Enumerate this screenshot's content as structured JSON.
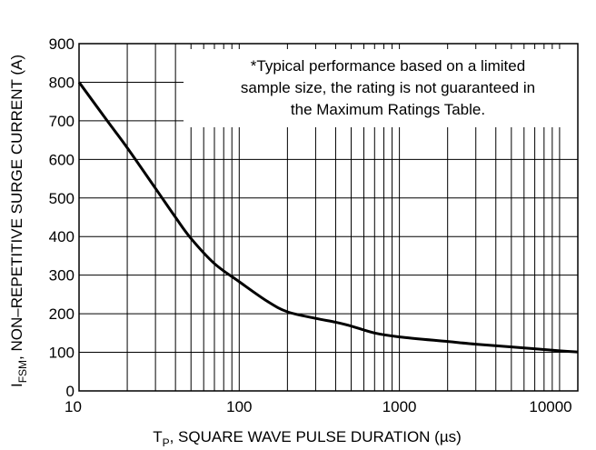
{
  "chart_data": {
    "type": "line",
    "x_scale": "log",
    "xlim": [
      10,
      13000
    ],
    "ylim": [
      0,
      900
    ],
    "grid": true,
    "x_tick_labels": [
      {
        "value": 10,
        "label": "10"
      },
      {
        "value": 100,
        "label": "100"
      },
      {
        "value": 1000,
        "label": "1000"
      },
      {
        "value": 10000,
        "label": "10000"
      }
    ],
    "y_tick_labels": [
      {
        "value": 0,
        "label": "0"
      },
      {
        "value": 100,
        "label": "100"
      },
      {
        "value": 200,
        "label": "200"
      },
      {
        "value": 300,
        "label": "300"
      },
      {
        "value": 400,
        "label": "400"
      },
      {
        "value": 500,
        "label": "500"
      },
      {
        "value": 600,
        "label": "600"
      },
      {
        "value": 700,
        "label": "700"
      },
      {
        "value": 800,
        "label": "800"
      },
      {
        "value": 900,
        "label": "900"
      }
    ],
    "xlabel": {
      "prefix": "T",
      "sub": "P",
      "rest": ", SQUARE WAVE PULSE DURATION (µs)"
    },
    "ylabel": {
      "prefix": "I",
      "sub": "FSM",
      "rest": ", NON–REPETITIVE SURGE CURRENT (A)"
    },
    "annotation": [
      "*Typical performance based on a limited",
      "sample size, the rating is not guaranteed in",
      "the Maximum Ratings Table."
    ],
    "series": [
      {
        "x": [
          10,
          15,
          20,
          30,
          40,
          50,
          70,
          100,
          150,
          200,
          300,
          400,
          500,
          700,
          1000,
          2000,
          3000,
          5000,
          10000,
          13000
        ],
        "y": [
          800,
          700,
          630,
          525,
          450,
          395,
          330,
          283,
          232,
          205,
          188,
          178,
          168,
          150,
          140,
          128,
          121,
          114,
          104,
          101
        ]
      }
    ]
  }
}
